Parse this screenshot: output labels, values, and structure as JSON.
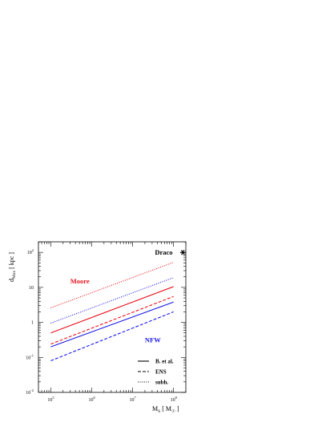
{
  "chart_data": {
    "type": "line",
    "xscale": "log",
    "yscale": "log",
    "xlim": [
      50000,
      200000000
    ],
    "ylim": [
      0.01,
      200
    ],
    "xticks": [
      {
        "value": 100000,
        "base": "10",
        "exp": "5"
      },
      {
        "value": 1000000,
        "base": "10",
        "exp": "6"
      },
      {
        "value": 10000000,
        "base": "10",
        "exp": "7"
      },
      {
        "value": 100000000,
        "base": "10",
        "exp": "8"
      }
    ],
    "yticks": [
      {
        "value": 0.01,
        "base": "10",
        "exp": "-2"
      },
      {
        "value": 0.1,
        "base": "10",
        "exp": "-1"
      },
      {
        "value": 1,
        "base": "1",
        "exp": ""
      },
      {
        "value": 10,
        "base": "10",
        "exp": ""
      },
      {
        "value": 100,
        "base": "10",
        "exp": "2"
      }
    ],
    "xlabel": {
      "main": "M",
      "sub": "S",
      "unit_open": "[ M",
      "unit_sub": "☉",
      "unit_close": "]"
    },
    "ylabel": {
      "main": "d",
      "sub": "Max",
      "unit": "[ kpc ]"
    },
    "series": [
      {
        "group": "Moore",
        "style": "B. et al.",
        "color": "#e8141e",
        "dash": "solid",
        "x": [
          100000,
          100000000
        ],
        "y": [
          0.5,
          10.5
        ]
      },
      {
        "group": "Moore",
        "style": "ENS",
        "color": "#e8141e",
        "dash": "dashed",
        "x": [
          100000,
          100000000
        ],
        "y": [
          0.24,
          5.5
        ]
      },
      {
        "group": "Moore",
        "style": "subh.",
        "color": "#e8141e",
        "dash": "dotted",
        "x": [
          100000,
          100000000
        ],
        "y": [
          2.6,
          52
        ]
      },
      {
        "group": "NFW",
        "style": "B. et al.",
        "color": "#1a1ae6",
        "dash": "solid",
        "x": [
          100000,
          100000000
        ],
        "y": [
          0.2,
          3.8
        ]
      },
      {
        "group": "NFW",
        "style": "ENS",
        "color": "#1a1ae6",
        "dash": "dashed",
        "x": [
          100000,
          100000000
        ],
        "y": [
          0.08,
          2.0
        ]
      },
      {
        "group": "NFW",
        "style": "subh.",
        "color": "#1a1ae6",
        "dash": "dotted",
        "x": [
          100000,
          100000000
        ],
        "y": [
          0.95,
          19
        ]
      }
    ],
    "annotations": [
      {
        "text": "Moore",
        "color": "#e8141e",
        "x": 300000,
        "y": 13
      },
      {
        "text": "NFW",
        "color": "#1a1ae6",
        "x": 20000000,
        "y": 0.27
      },
      {
        "text": "Draco",
        "color": "#000000",
        "x": 35000000,
        "y": 85
      }
    ],
    "legend": {
      "placement": "bottom-right",
      "entries": [
        {
          "label": "B. et al.",
          "dash": "solid"
        },
        {
          "label": "ENS",
          "dash": "dashed"
        },
        {
          "label": "subh.",
          "dash": "dotted"
        }
      ]
    },
    "marker": {
      "label": "Draco",
      "symbol": "star"
    }
  }
}
